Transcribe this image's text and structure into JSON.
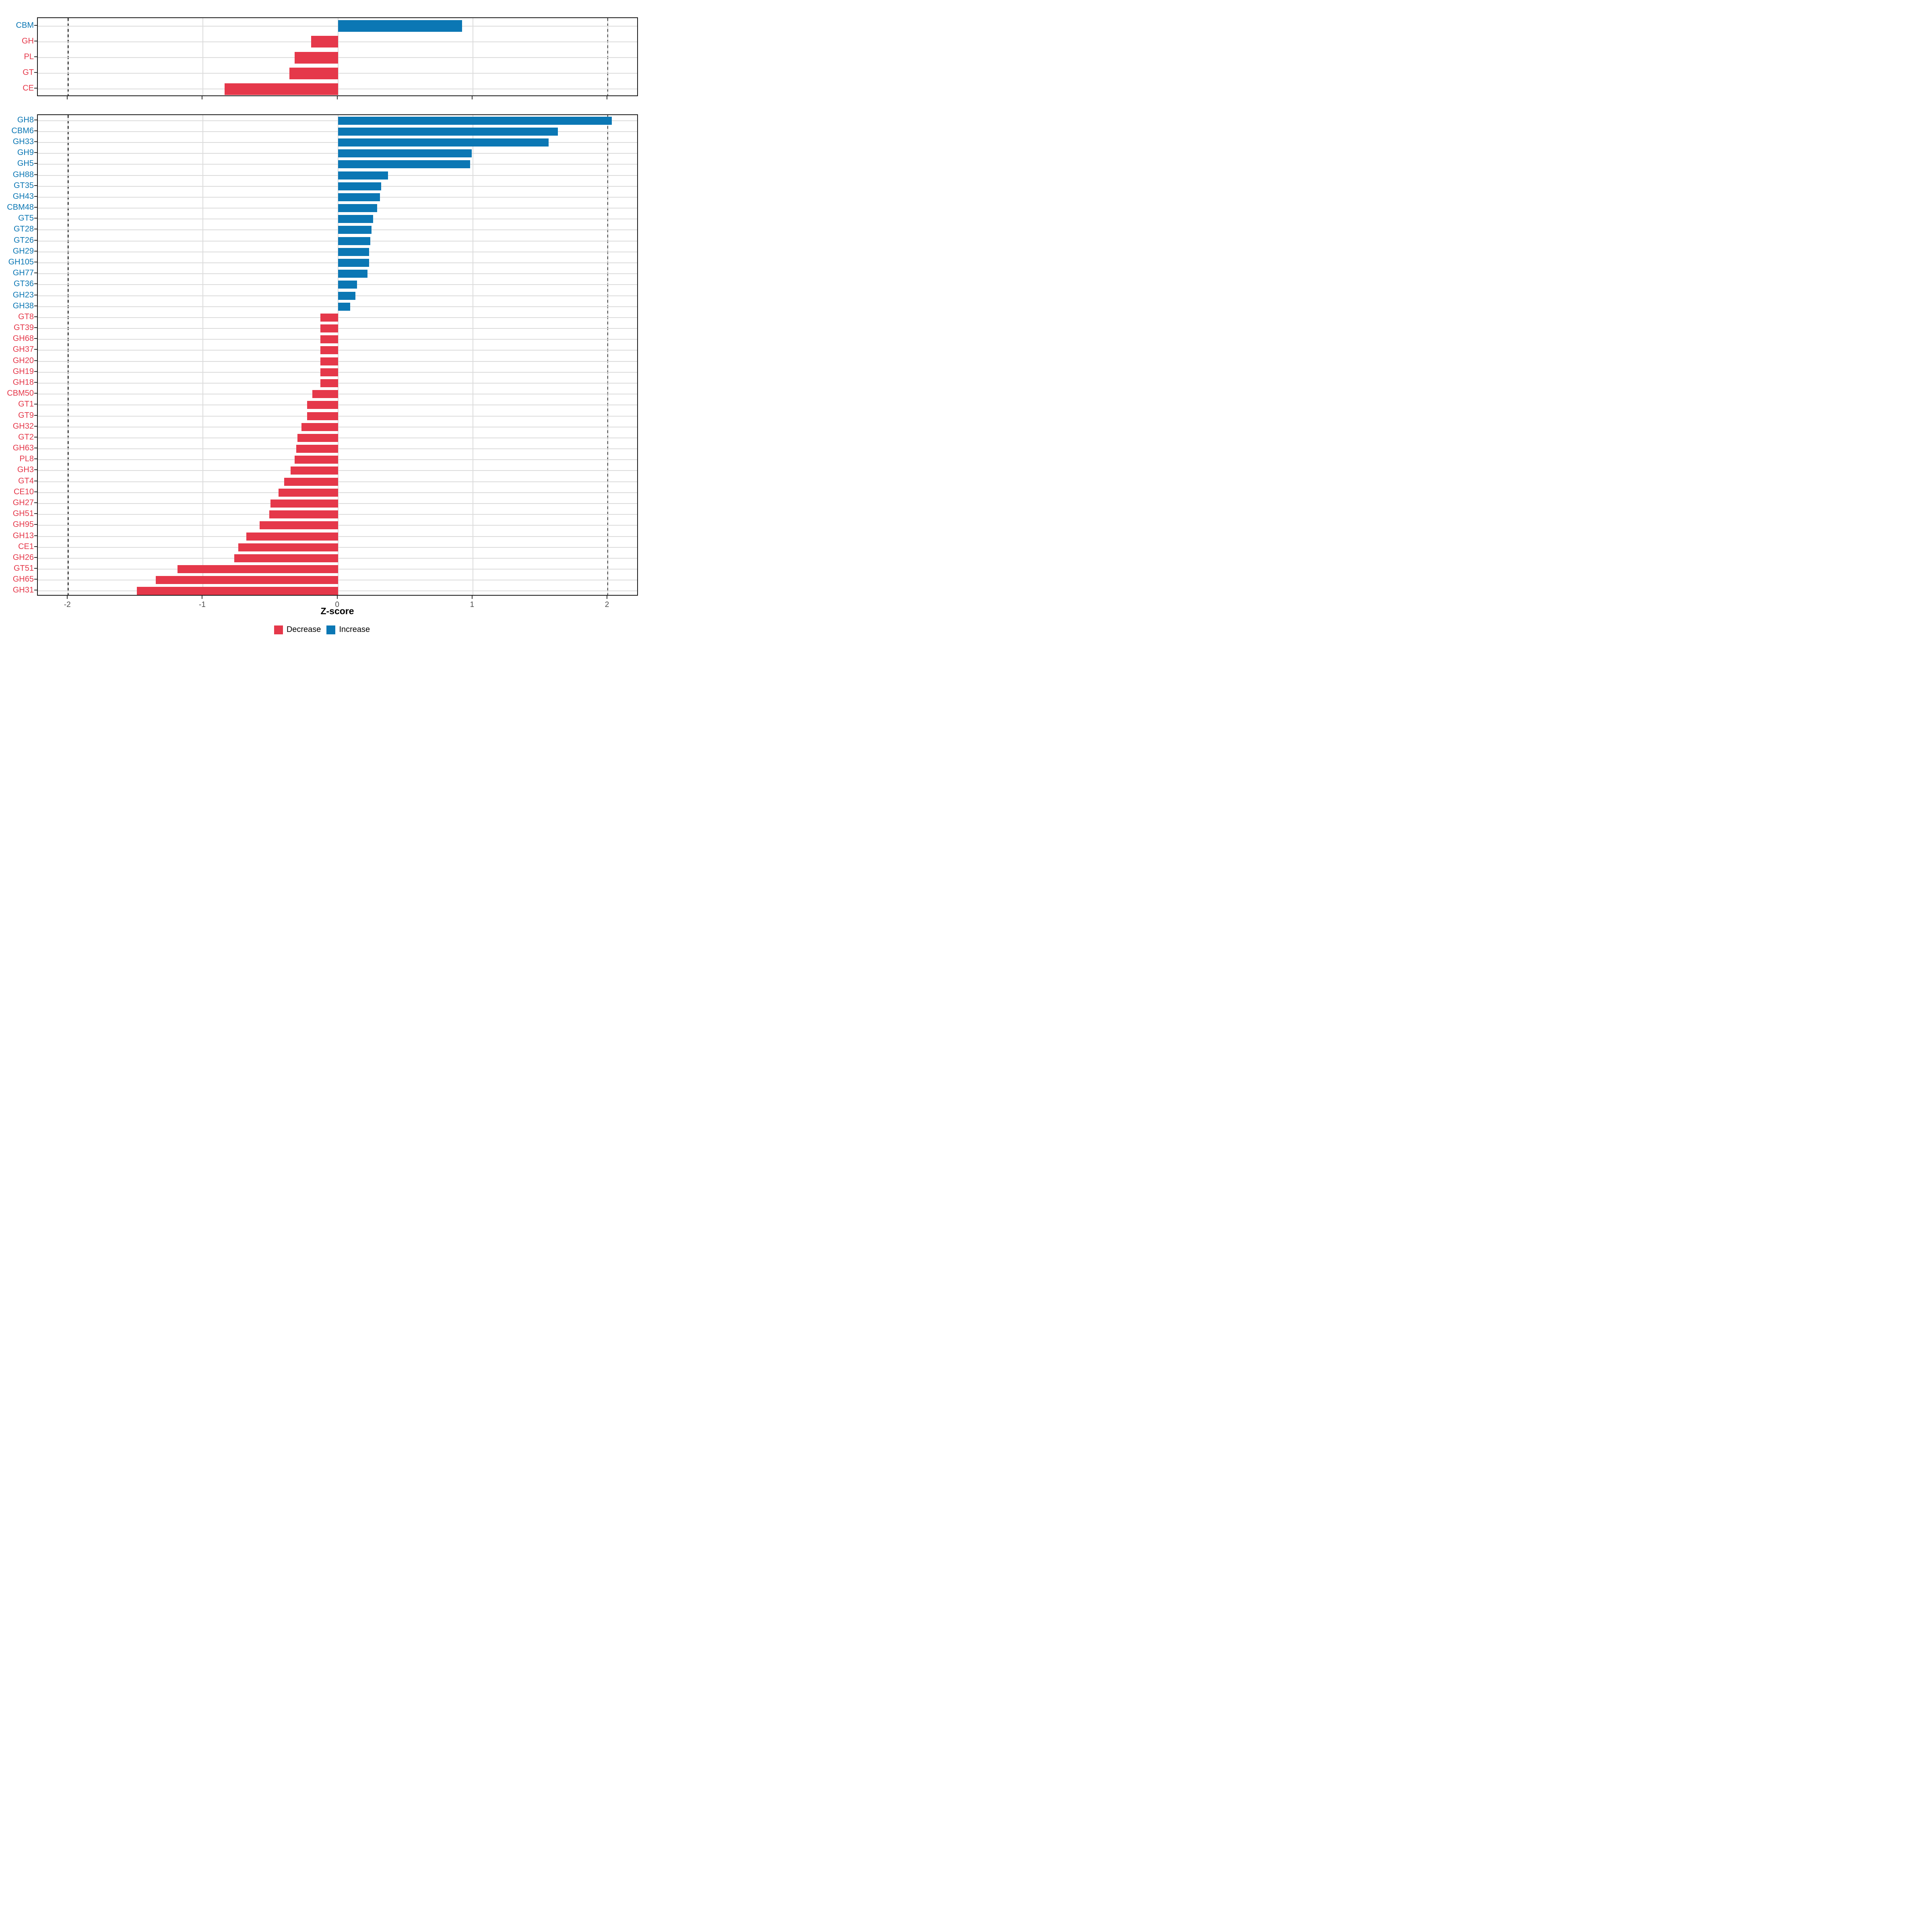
{
  "chart_data": {
    "type": "bar",
    "orientation": "horizontal",
    "title": "",
    "xlabel": "Z-score",
    "ylabel": "",
    "xlim": [
      -2.226,
      2.228
    ],
    "x_ticks": [
      {
        "value": -2,
        "label": "-2"
      },
      {
        "value": -1,
        "label": "-1"
      },
      {
        "value": 0,
        "label": "0"
      },
      {
        "value": 1,
        "label": "1"
      },
      {
        "value": 2,
        "label": "2"
      }
    ],
    "dashed_reference_lines": [
      -2,
      2
    ],
    "grid": true,
    "colors": {
      "increase": "#0B77B4",
      "decrease": "#E5384A"
    },
    "legend": {
      "position": "bottom",
      "entries": [
        {
          "label": "Decrease",
          "key": "decrease",
          "color": "#E5384A"
        },
        {
          "label": "Increase",
          "key": "increase",
          "color": "#0B77B4"
        }
      ]
    },
    "panels": [
      {
        "name": "classes",
        "rows": [
          {
            "label": "CBM",
            "value": 0.92
          },
          {
            "label": "GH",
            "value": -0.2
          },
          {
            "label": "PL",
            "value": -0.32
          },
          {
            "label": "GT",
            "value": -0.36
          },
          {
            "label": "CE",
            "value": -0.84
          }
        ]
      },
      {
        "name": "families",
        "rows": [
          {
            "label": "GH8",
            "value": 2.03
          },
          {
            "label": "CBM6",
            "value": 1.63
          },
          {
            "label": "GH33",
            "value": 1.56
          },
          {
            "label": "GH9",
            "value": 0.99
          },
          {
            "label": "GH5",
            "value": 0.98
          },
          {
            "label": "GH88",
            "value": 0.37
          },
          {
            "label": "GT35",
            "value": 0.32
          },
          {
            "label": "GH43",
            "value": 0.31
          },
          {
            "label": "CBM48",
            "value": 0.29
          },
          {
            "label": "GT5",
            "value": 0.26
          },
          {
            "label": "GT28",
            "value": 0.25
          },
          {
            "label": "GT26",
            "value": 0.24
          },
          {
            "label": "GH29",
            "value": 0.23
          },
          {
            "label": "GH105",
            "value": 0.23
          },
          {
            "label": "GH77",
            "value": 0.22
          },
          {
            "label": "GT36",
            "value": 0.14
          },
          {
            "label": "GH23",
            "value": 0.13
          },
          {
            "label": "GH38",
            "value": 0.09
          },
          {
            "label": "GT8",
            "value": -0.13
          },
          {
            "label": "GT39",
            "value": -0.13
          },
          {
            "label": "GH68",
            "value": -0.13
          },
          {
            "label": "GH37",
            "value": -0.13
          },
          {
            "label": "GH20",
            "value": -0.13
          },
          {
            "label": "GH19",
            "value": -0.13
          },
          {
            "label": "GH18",
            "value": -0.13
          },
          {
            "label": "CBM50",
            "value": -0.19
          },
          {
            "label": "GT1",
            "value": -0.23
          },
          {
            "label": "GT9",
            "value": -0.23
          },
          {
            "label": "GH32",
            "value": -0.27
          },
          {
            "label": "GT2",
            "value": -0.3
          },
          {
            "label": "GH63",
            "value": -0.31
          },
          {
            "label": "PL8",
            "value": -0.32
          },
          {
            "label": "GH3",
            "value": -0.35
          },
          {
            "label": "GT4",
            "value": -0.4
          },
          {
            "label": "CE10",
            "value": -0.44
          },
          {
            "label": "GH27",
            "value": -0.5
          },
          {
            "label": "GH51",
            "value": -0.51
          },
          {
            "label": "GH95",
            "value": -0.58
          },
          {
            "label": "GH13",
            "value": -0.68
          },
          {
            "label": "CE1",
            "value": -0.74
          },
          {
            "label": "GH26",
            "value": -0.77
          },
          {
            "label": "GT51",
            "value": -1.19
          },
          {
            "label": "GH65",
            "value": -1.35
          },
          {
            "label": "GH31",
            "value": -1.49
          }
        ]
      }
    ]
  }
}
